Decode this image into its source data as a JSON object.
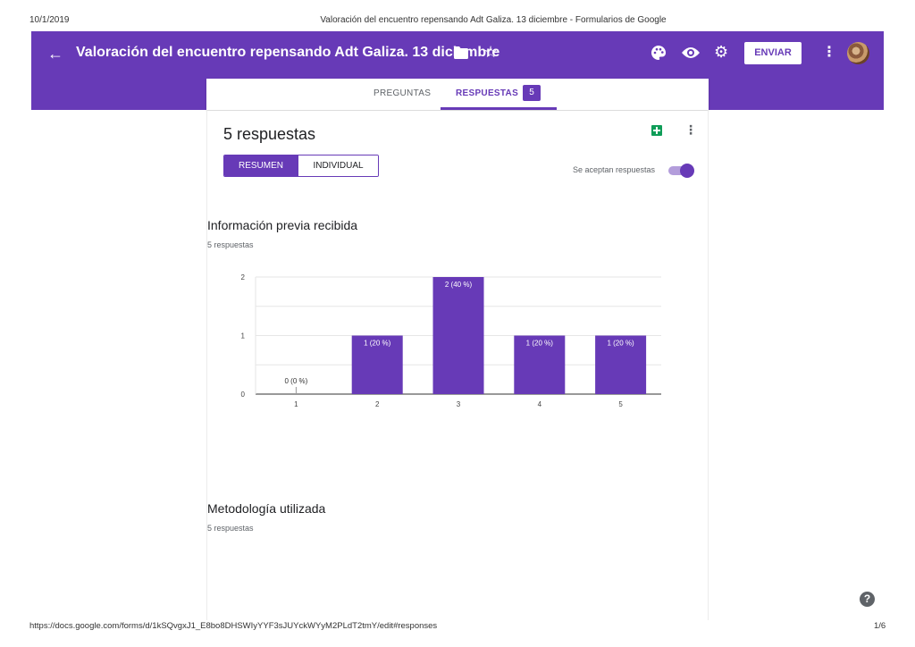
{
  "print": {
    "date": "10/1/2019",
    "title": "Valoración del encuentro repensando Adt Galiza. 13 diciembre - Formularios de Google",
    "url": "https://docs.google.com/forms/d/1kSQvgxJ1_E8bo8DHSWIyYYF3sJUYckWYyM2PLdT2tmY/edit#responses",
    "page": "1/6"
  },
  "header": {
    "title": "Valoración del encuentro repensando Adt Galiza. 13 diciembre",
    "send_label": "ENVIAR",
    "icons": [
      "arrow-back-icon",
      "folder-icon",
      "star-icon",
      "palette-icon",
      "eye-icon",
      "gear-icon",
      "more-vert-icon",
      "avatar"
    ]
  },
  "tabs": {
    "questions": "PREGUNTAS",
    "responses": "RESPUESTAS",
    "responses_badge": "5"
  },
  "summary": {
    "count_label": "5 respuestas",
    "seg_summary": "RESUMEN",
    "seg_individual": "INDIVIDUAL",
    "accepting_label": "Se aceptan respuestas",
    "accepting": true
  },
  "questions": [
    {
      "title": "Información previa recibida",
      "subtitle": "5 respuestas"
    },
    {
      "title": "Metodología utilizada",
      "subtitle": "5 respuestas"
    }
  ],
  "colors": {
    "accent": "#673ab7",
    "sheets": "#0f9d58"
  },
  "chart_data": {
    "type": "bar",
    "categories": [
      "1",
      "2",
      "3",
      "4",
      "5"
    ],
    "values": [
      0,
      1,
      2,
      1,
      1
    ],
    "data_labels": [
      "0 (0 %)",
      "1 (20 %)",
      "2 (40 %)",
      "1 (20 %)",
      "1 (20 %)"
    ],
    "y_ticks": [
      "0",
      "1",
      "2"
    ],
    "ylim": [
      0,
      2
    ],
    "grid": true,
    "color": "#673ab7"
  }
}
